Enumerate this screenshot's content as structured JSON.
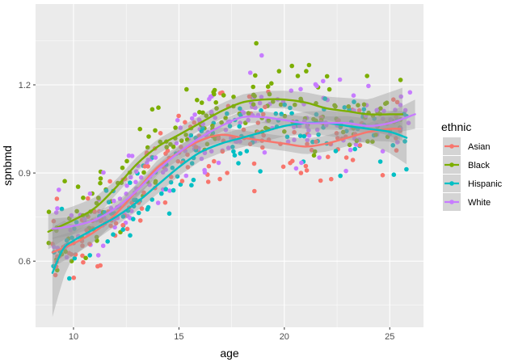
{
  "chart_data": {
    "type": "scatter",
    "xlabel": "age",
    "ylabel": "spnbmd",
    "xlim": [
      8.2,
      26.6
    ],
    "ylim": [
      0.375,
      1.475
    ],
    "x_ticks": [
      10,
      15,
      20,
      25
    ],
    "x_tick_labels": [
      "10",
      "15",
      "20",
      "25"
    ],
    "y_ticks": [
      0.6,
      0.9,
      1.2
    ],
    "y_tick_labels": [
      "0.6",
      "0.9",
      "1.2"
    ],
    "grid": true,
    "panel_background": "#ebebeb",
    "legend": {
      "title": "ethnic",
      "position": "right"
    },
    "smoother": {
      "method": "loess",
      "show_confidence_band": true,
      "band_color": "#999999"
    },
    "series": [
      {
        "name": "Asian",
        "color": "#F8766D",
        "x_range": [
          9.0,
          25.5
        ],
        "trend": [
          [
            9.0,
            0.63
          ],
          [
            10,
            0.66
          ],
          [
            11,
            0.7
          ],
          [
            12,
            0.76
          ],
          [
            13,
            0.84
          ],
          [
            14,
            0.92
          ],
          [
            15,
            0.97
          ],
          [
            16,
            1.01
          ],
          [
            17,
            1.03
          ],
          [
            18,
            1.02
          ],
          [
            19,
            1.01
          ],
          [
            20,
            1.0
          ],
          [
            21,
            0.99
          ],
          [
            22,
            1.0
          ],
          [
            23,
            1.02
          ],
          [
            24,
            1.04
          ],
          [
            25,
            1.05
          ],
          [
            25.5,
            1.05
          ]
        ],
        "ci_half": [
          [
            9.0,
            0.05
          ],
          [
            12,
            0.025
          ],
          [
            16,
            0.025
          ],
          [
            20,
            0.025
          ],
          [
            24,
            0.03
          ],
          [
            25.5,
            0.05
          ]
        ],
        "spread": 0.11
      },
      {
        "name": "Black",
        "color": "#7CAE00",
        "x_range": [
          8.8,
          25.6
        ],
        "trend": [
          [
            8.8,
            0.7
          ],
          [
            10,
            0.74
          ],
          [
            11,
            0.78
          ],
          [
            12,
            0.85
          ],
          [
            13,
            0.93
          ],
          [
            14,
            0.99
          ],
          [
            15,
            1.03
          ],
          [
            16,
            1.07
          ],
          [
            17,
            1.11
          ],
          [
            18,
            1.14
          ],
          [
            19,
            1.15
          ],
          [
            20,
            1.15
          ],
          [
            21,
            1.14
          ],
          [
            22,
            1.12
          ],
          [
            23,
            1.11
          ],
          [
            24,
            1.1
          ],
          [
            25,
            1.1
          ],
          [
            25.6,
            1.1
          ]
        ],
        "ci_half": [
          [
            8.8,
            0.06
          ],
          [
            12,
            0.025
          ],
          [
            16,
            0.025
          ],
          [
            20,
            0.03
          ],
          [
            24,
            0.05
          ],
          [
            25.6,
            0.09
          ]
        ],
        "spread": 0.12
      },
      {
        "name": "Hispanic",
        "color": "#00BFC4",
        "x_range": [
          9.0,
          25.8
        ],
        "trend": [
          [
            9.0,
            0.56
          ],
          [
            9.5,
            0.64
          ],
          [
            10,
            0.67
          ],
          [
            11,
            0.71
          ],
          [
            12,
            0.75
          ],
          [
            13,
            0.8
          ],
          [
            14,
            0.86
          ],
          [
            15,
            0.92
          ],
          [
            16,
            0.97
          ],
          [
            17,
            1.0
          ],
          [
            18,
            1.02
          ],
          [
            19,
            1.04
          ],
          [
            20,
            1.06
          ],
          [
            21,
            1.07
          ],
          [
            22,
            1.07
          ],
          [
            23,
            1.06
          ],
          [
            24,
            1.05
          ],
          [
            25,
            1.04
          ],
          [
            25.8,
            1.02
          ]
        ],
        "ci_half": [
          [
            9.0,
            0.15
          ],
          [
            10,
            0.05
          ],
          [
            12,
            0.03
          ],
          [
            16,
            0.03
          ],
          [
            20,
            0.035
          ],
          [
            24,
            0.05
          ],
          [
            25.8,
            0.09
          ]
        ],
        "spread": 0.11
      },
      {
        "name": "White",
        "color": "#C77CFF",
        "x_range": [
          9.0,
          26.2
        ],
        "trend": [
          [
            9.0,
            0.71
          ],
          [
            10,
            0.72
          ],
          [
            11,
            0.74
          ],
          [
            12,
            0.78
          ],
          [
            13,
            0.84
          ],
          [
            14,
            0.91
          ],
          [
            15,
            0.97
          ],
          [
            16,
            1.02
          ],
          [
            17,
            1.06
          ],
          [
            18,
            1.09
          ],
          [
            19,
            1.09
          ],
          [
            20,
            1.08
          ],
          [
            21,
            1.07
          ],
          [
            22,
            1.07
          ],
          [
            23,
            1.07
          ],
          [
            24,
            1.06
          ],
          [
            25,
            1.07
          ],
          [
            26.2,
            1.1
          ]
        ],
        "ci_half": [
          [
            9.0,
            0.035
          ],
          [
            12,
            0.02
          ],
          [
            16,
            0.02
          ],
          [
            20,
            0.02
          ],
          [
            24,
            0.025
          ],
          [
            26.2,
            0.05
          ]
        ],
        "spread": 0.12
      }
    ]
  }
}
